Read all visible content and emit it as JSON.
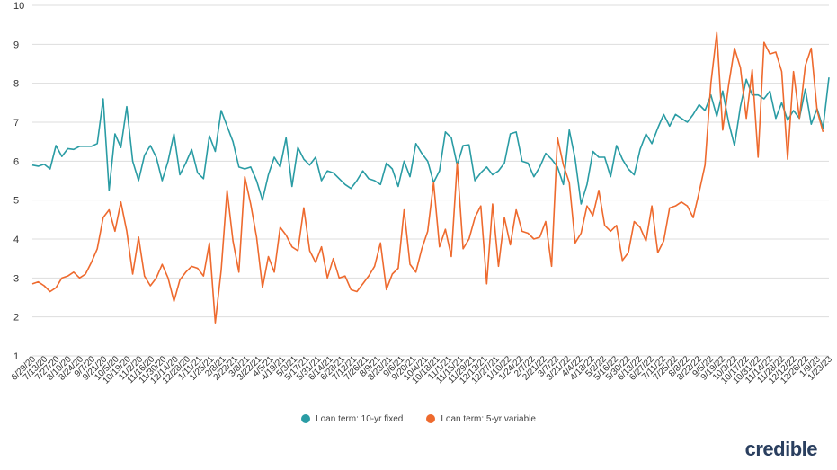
{
  "chart_data": {
    "type": "line",
    "title": "",
    "xlabel": "",
    "ylabel": "",
    "ylim": [
      1,
      10
    ],
    "yticks": [
      1,
      2,
      3,
      4,
      5,
      6,
      7,
      8,
      9,
      10
    ],
    "grid": true,
    "legend_position": "bottom-center",
    "x_tick_labels": [
      "6/29/20",
      "7/13/20",
      "7/27/20",
      "8/10/20",
      "8/24/20",
      "9/7/20",
      "9/21/20",
      "10/5/20",
      "10/19/20",
      "11/2/20",
      "11/16/20",
      "11/30/20",
      "12/14/20",
      "12/28/20",
      "1/11/21",
      "1/25/21",
      "2/8/21",
      "2/22/21",
      "3/8/21",
      "3/22/21",
      "4/5/21",
      "4/19/21",
      "5/3/21",
      "5/17/21",
      "5/31/21",
      "6/14/21",
      "6/28/21",
      "7/12/21",
      "7/26/21",
      "8/9/21",
      "8/23/21",
      "9/6/21",
      "9/20/21",
      "10/4/21",
      "10/18/21",
      "11/1/21",
      "11/15/21",
      "11/29/21",
      "12/13/21",
      "12/27/21",
      "1/10/22",
      "1/24/22",
      "2/7/22",
      "2/21/22",
      "3/7/22",
      "3/21/22",
      "4/4/22",
      "4/18/22",
      "5/2/22",
      "5/16/22",
      "5/30/22",
      "6/13/22",
      "6/27/22",
      "7/11/22",
      "7/25/22",
      "8/8/22",
      "8/22/22",
      "9/5/22",
      "9/19/22",
      "10/3/22",
      "10/17/22",
      "10/31/22",
      "11/14/22",
      "11/28/22",
      "12/12/22",
      "12/26/22",
      "1/9/23",
      "1/23/23"
    ],
    "series": [
      {
        "name": "Loan term: 10-yr fixed",
        "color": "#2a9ca4",
        "values": [
          5.9,
          5.87,
          5.92,
          5.8,
          6.4,
          6.12,
          6.32,
          6.3,
          6.38,
          6.38,
          6.38,
          6.45,
          7.6,
          5.25,
          6.7,
          6.35,
          7.4,
          6.0,
          5.5,
          6.15,
          6.4,
          6.1,
          5.5,
          6.0,
          6.7,
          5.65,
          5.95,
          6.3,
          5.7,
          5.55,
          6.65,
          6.25,
          7.3,
          6.9,
          6.5,
          5.85,
          5.8,
          5.85,
          5.5,
          5.0,
          5.65,
          6.1,
          5.85,
          6.6,
          5.35,
          6.35,
          6.05,
          5.9,
          6.1,
          5.5,
          5.75,
          5.7,
          5.55,
          5.4,
          5.3,
          5.5,
          5.75,
          5.55,
          5.5,
          5.4,
          5.95,
          5.8,
          5.35,
          6.0,
          5.6,
          6.45,
          6.2,
          6.0,
          5.45,
          5.75,
          6.75,
          6.6,
          5.9,
          6.4,
          6.42,
          5.5,
          5.7,
          5.85,
          5.65,
          5.75,
          5.95,
          6.7,
          6.75,
          6.0,
          5.95,
          5.6,
          5.85,
          6.2,
          6.05,
          5.85,
          5.4,
          6.8,
          6.05,
          4.9,
          5.4,
          6.25,
          6.1,
          6.1,
          5.6,
          6.4,
          6.05,
          5.8,
          5.65,
          6.3,
          6.7,
          6.45,
          6.85,
          7.2,
          6.9,
          7.2,
          7.1,
          7.0,
          7.2,
          7.45,
          7.3,
          7.7,
          7.15,
          7.8,
          7.0,
          6.4,
          7.4,
          8.1,
          7.7,
          7.7,
          7.6,
          7.8,
          7.1,
          7.5,
          7.05,
          7.3,
          7.1,
          7.85,
          6.95,
          7.35,
          6.85,
          8.15
        ]
      },
      {
        "name": "Loan term: 5-yr variable",
        "color": "#ee6a2e",
        "values": [
          2.85,
          2.9,
          2.8,
          2.65,
          2.75,
          3.0,
          3.05,
          3.15,
          3.0,
          3.1,
          3.4,
          3.75,
          4.55,
          4.75,
          4.2,
          4.95,
          4.2,
          3.1,
          4.05,
          3.05,
          2.8,
          3.0,
          3.35,
          3.0,
          2.4,
          2.95,
          3.15,
          3.3,
          3.25,
          3.05,
          3.9,
          1.85,
          3.2,
          5.25,
          3.95,
          3.15,
          5.6,
          4.9,
          4.05,
          2.75,
          3.55,
          3.15,
          4.3,
          4.1,
          3.8,
          3.7,
          4.8,
          3.7,
          3.4,
          3.8,
          3.0,
          3.5,
          3.0,
          3.05,
          2.7,
          2.65,
          2.85,
          3.05,
          3.3,
          3.9,
          2.7,
          3.1,
          3.25,
          4.75,
          3.35,
          3.15,
          3.75,
          4.2,
          5.45,
          3.8,
          4.25,
          3.55,
          5.95,
          3.75,
          4.0,
          4.55,
          4.85,
          2.85,
          4.9,
          3.3,
          4.55,
          3.85,
          4.75,
          4.2,
          4.15,
          4.0,
          4.05,
          4.45,
          3.3,
          6.6,
          5.9,
          5.45,
          3.9,
          4.15,
          4.85,
          4.6,
          5.25,
          4.35,
          4.2,
          4.35,
          3.45,
          3.65,
          4.45,
          4.3,
          3.95,
          4.85,
          3.65,
          3.95,
          4.8,
          4.85,
          4.95,
          4.85,
          4.55,
          5.2,
          5.9,
          8.0,
          9.3,
          6.8,
          7.95,
          8.9,
          8.4,
          7.1,
          8.35,
          6.1,
          9.05,
          8.75,
          8.8,
          8.3,
          6.05,
          8.3,
          7.1,
          8.45,
          8.9,
          7.3,
          6.75
        ]
      }
    ]
  },
  "legend": {
    "items": [
      {
        "label": "Loan term: 10-yr fixed",
        "color": "#2a9ca4"
      },
      {
        "label": "Loan term: 5-yr variable",
        "color": "#ee6a2e"
      }
    ]
  },
  "brand": {
    "text": "credible"
  }
}
